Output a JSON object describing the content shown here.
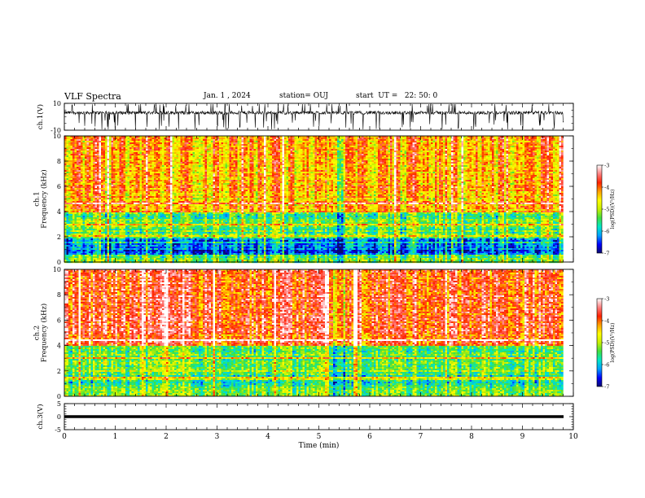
{
  "header": {
    "title": "VLF Spectra",
    "date": "Jan. 1 , 2024",
    "station": "station= OUJ",
    "start": "start  UT =   22: 50: 0"
  },
  "chart_data": [
    {
      "type": "line",
      "panel": "ch.1 waveform",
      "ylabel": "ch.1(V)",
      "ylim": [
        -10,
        10
      ],
      "y_tick_labels": [
        "10",
        "-10"
      ],
      "xlim": [
        0,
        10
      ],
      "color": "#000000",
      "approx_baseline_V": 3,
      "approx_noise_span_V": [
        -2,
        8
      ]
    },
    {
      "type": "heatmap",
      "panel": "ch.1 spectrogram",
      "ylabel": "ch.1\nFrequency (kHz)",
      "ylim": [
        0,
        10
      ],
      "y_tick_labels": [
        "0",
        "2",
        "4",
        "6",
        "8",
        "10"
      ],
      "xlim": [
        0,
        9.8
      ],
      "colorbar_label": "log(PSD)(V²/Hz)",
      "colorbar_range": [
        -7,
        -3
      ],
      "colorbar_tick_labels": [
        "-3",
        "-4",
        "-5",
        "-6",
        "-7"
      ],
      "colormap": [
        "#0a0a6e",
        "#0000ff",
        "#00a0ff",
        "#00e8c8",
        "#40e040",
        "#c8f000",
        "#ffff00",
        "#ffa000",
        "#ff2000",
        "#ff8080",
        "#ffffff"
      ],
      "bands_kHz": [
        {
          "from": 0,
          "to": 0.6,
          "level": -5.3
        },
        {
          "from": 0.6,
          "to": 2.0,
          "level": -6.4
        },
        {
          "from": 2.0,
          "to": 4.0,
          "level": -5.4
        },
        {
          "from": 4.0,
          "to": 10.0,
          "level": -4.3
        }
      ],
      "lines_kHz": [
        1.5,
        2.0,
        3.0,
        4.6
      ]
    },
    {
      "type": "heatmap",
      "panel": "ch.2 spectrogram",
      "ylabel": "ch.2\nFrequency (kHz)",
      "ylim": [
        0,
        10
      ],
      "y_tick_labels": [
        "0",
        "2",
        "4",
        "6",
        "8",
        "10"
      ],
      "xlim": [
        0,
        9.8
      ],
      "colorbar_label": "log(PSD)(V²/Hz)",
      "colorbar_range": [
        -7,
        -3
      ],
      "colorbar_tick_labels": [
        "-3",
        "-4",
        "-5",
        "-6",
        "-7"
      ],
      "bands_kHz": [
        {
          "from": 0,
          "to": 0.6,
          "level": -5.2
        },
        {
          "from": 0.6,
          "to": 2.0,
          "level": -5.6
        },
        {
          "from": 2.0,
          "to": 4.0,
          "level": -5.3
        },
        {
          "from": 4.0,
          "to": 10.0,
          "level": -3.8
        }
      ],
      "lines_kHz": [
        1.4,
        2.0,
        3.0,
        4.4
      ]
    },
    {
      "type": "line",
      "panel": "ch.3 waveform",
      "ylabel": "ch.3(V)",
      "ylim": [
        -5,
        5
      ],
      "y_tick_labels": [
        "5",
        "0",
        "-5"
      ],
      "xlim": [
        0,
        9.8
      ],
      "color": "#000000",
      "approx_value_V": 0
    }
  ],
  "x_axis": {
    "label": "Time (min)",
    "range": [
      0,
      10
    ],
    "tick_labels": [
      "0",
      "1",
      "2",
      "3",
      "4",
      "5",
      "6",
      "7",
      "8",
      "9",
      "10"
    ]
  }
}
